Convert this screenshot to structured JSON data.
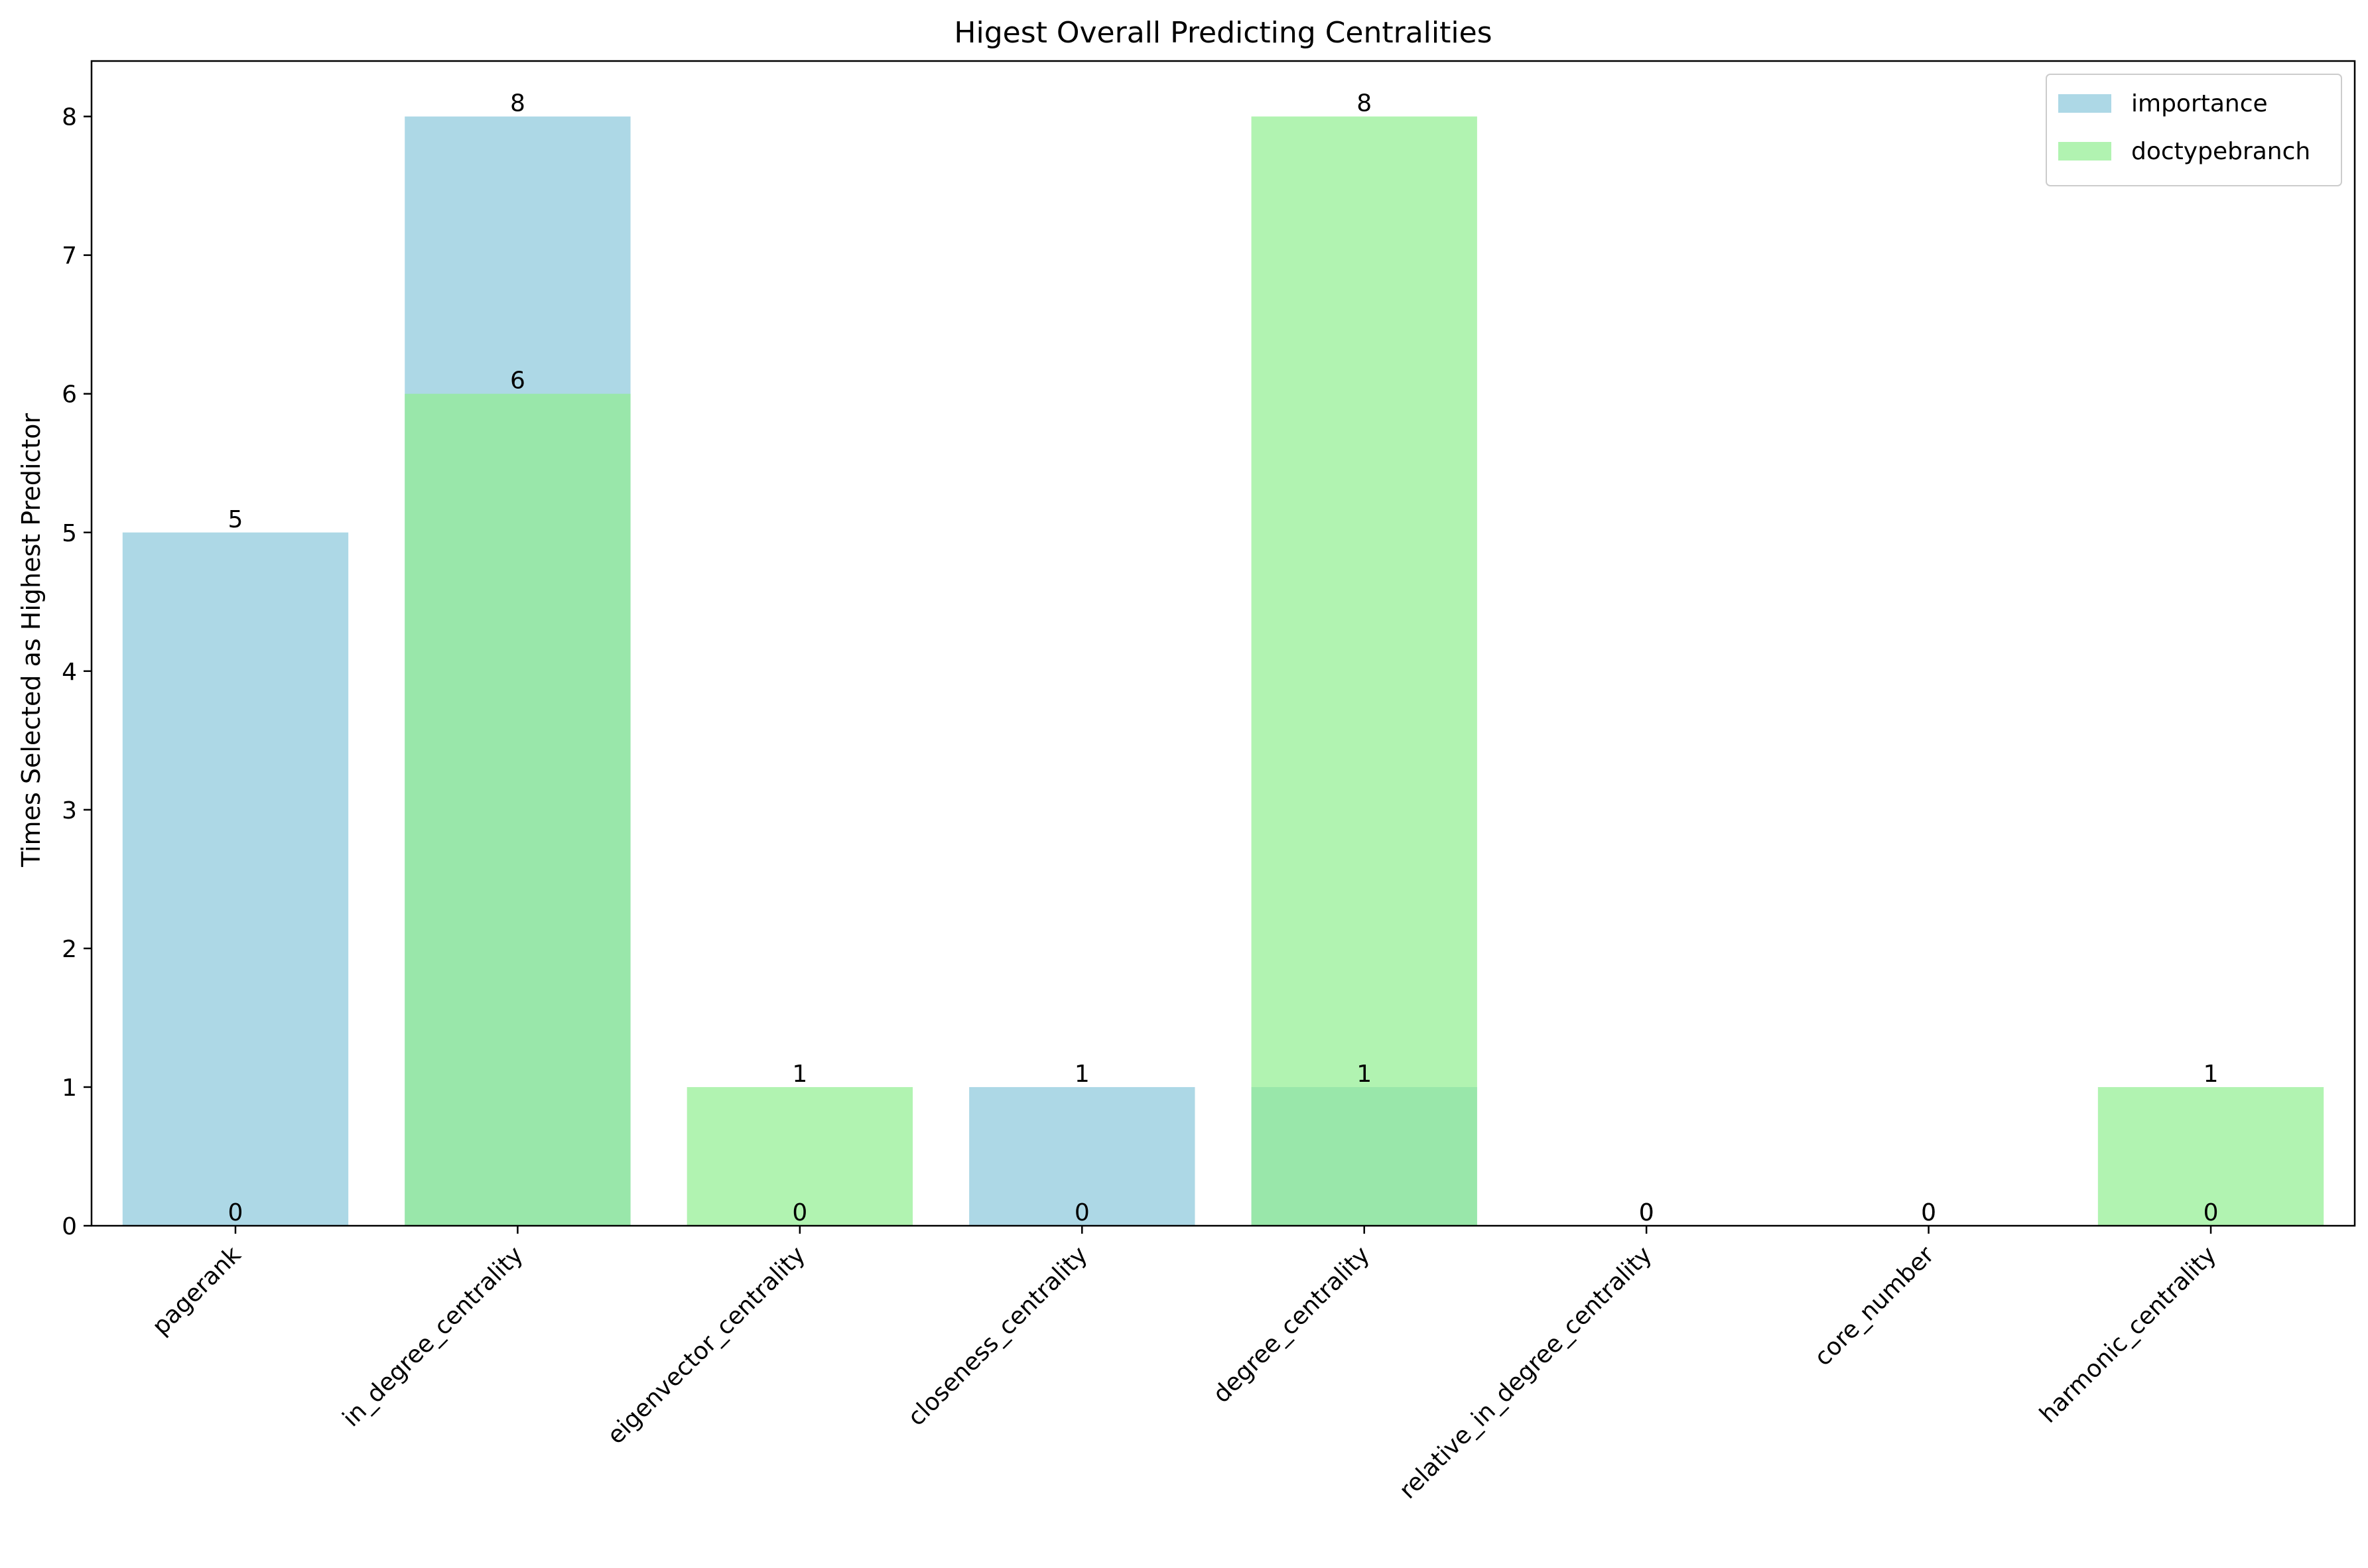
{
  "chart_data": {
    "type": "bar",
    "title": "Higest Overall Predicting Centralities",
    "xlabel": "",
    "ylabel": "Times Selected as Highest Predictor",
    "categories": [
      "pagerank",
      "in_degree_centrality",
      "eigenvector_centrality",
      "closeness_centrality",
      "degree_centrality",
      "relative_in_degree_centrality",
      "core_number",
      "harmonic_centrality"
    ],
    "series": [
      {
        "name": "importance",
        "values": [
          5,
          8,
          0,
          1,
          1,
          0,
          0,
          0
        ],
        "color": "#ADD8E6",
        "opacity": 1.0
      },
      {
        "name": "doctypebranch",
        "values": [
          0,
          6,
          1,
          0,
          8,
          0,
          0,
          1
        ],
        "color": "#90EE90",
        "opacity": 0.7
      }
    ],
    "ylim": [
      0,
      8.4
    ],
    "yticks": [
      0,
      1,
      2,
      3,
      4,
      5,
      6,
      7,
      8
    ],
    "bar_mode": "overlay",
    "grid": false,
    "legend_position": "top-right"
  }
}
